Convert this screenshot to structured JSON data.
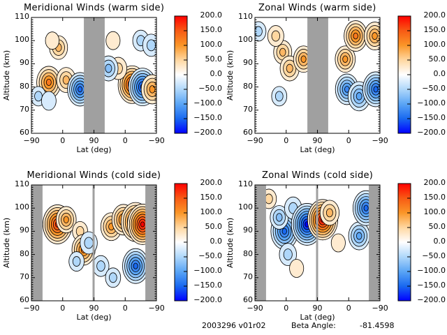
{
  "figure": {
    "footer": {
      "date_version": "2003296 v01r02",
      "beta_label": "Beta Angle:",
      "beta_value": "-81.4598"
    }
  },
  "chart_data": [
    {
      "type": "heatmap",
      "title": "Meridional Winds (warm side)",
      "xlabel": "Lat (deg)",
      "ylabel": "Altitude (km)",
      "x_tick_labels": [
        "-90",
        "0",
        "90",
        "0",
        "-90"
      ],
      "x_axis_note": "concatenated latitude track -90 to 90 to -90 (position 0-360)",
      "xlim": [
        0,
        360
      ],
      "ylim": [
        60,
        110
      ],
      "y_ticks": [
        60,
        70,
        80,
        90,
        100,
        110
      ],
      "colorbar": {
        "range": [
          -200,
          200
        ],
        "tick_labels": [
          "200.0",
          "150.0",
          "100.0",
          "50.0",
          "0.0",
          "-50.0",
          "-100.0",
          "-150.0",
          "-200.0"
        ]
      },
      "masked_ranges": [
        [
          151,
          211
        ]
      ],
      "features": [
        {
          "x": 50,
          "alt": 82,
          "value": 130
        },
        {
          "x": 78,
          "alt": 97,
          "value": 70
        },
        {
          "x": 60,
          "alt": 100,
          "value": 25
        },
        {
          "x": 100,
          "alt": 83,
          "value": 80
        },
        {
          "x": 140,
          "alt": 79,
          "value": -140
        },
        {
          "x": 20,
          "alt": 76,
          "value": -40
        },
        {
          "x": 50,
          "alt": 74,
          "value": -35
        },
        {
          "x": 290,
          "alt": 81,
          "value": 170
        },
        {
          "x": 250,
          "alt": 88,
          "value": 60
        },
        {
          "x": 235,
          "alt": 100,
          "value": 30
        },
        {
          "x": 222,
          "alt": 88,
          "value": -80
        },
        {
          "x": 320,
          "alt": 80,
          "value": -170
        },
        {
          "x": 348,
          "alt": 79,
          "value": 110
        },
        {
          "x": 315,
          "alt": 100,
          "value": -50
        },
        {
          "x": 345,
          "alt": 98,
          "value": -60
        }
      ]
    },
    {
      "type": "heatmap",
      "title": "Zonal Winds (warm side)",
      "xlabel": "Lat (deg)",
      "ylabel": "Altitude (km)",
      "x_tick_labels": [
        "-90",
        "0",
        "90",
        "0",
        "-90"
      ],
      "x_axis_note": "concatenated latitude track -90 to 90 to -90 (position 0-360)",
      "xlim": [
        0,
        360
      ],
      "ylim": [
        60,
        110
      ],
      "y_ticks": [
        60,
        70,
        80,
        90,
        100,
        110
      ],
      "colorbar": {
        "range": [
          -200,
          200
        ],
        "tick_labels": [
          "200.0",
          "150.0",
          "100.0",
          "50.0",
          "0.0",
          "-50.0",
          "-100.0",
          "-150.0",
          "-200.0"
        ]
      },
      "masked_ranges": [
        [
          151,
          211
        ]
      ],
      "features": [
        {
          "x": 80,
          "alt": 95,
          "value": 70
        },
        {
          "x": 100,
          "alt": 88,
          "value": 80
        },
        {
          "x": 60,
          "alt": 102,
          "value": 50
        },
        {
          "x": 140,
          "alt": 92,
          "value": 90
        },
        {
          "x": 70,
          "alt": 76,
          "value": -40
        },
        {
          "x": 10,
          "alt": 104,
          "value": -40
        },
        {
          "x": 260,
          "alt": 92,
          "value": 90
        },
        {
          "x": 290,
          "alt": 102,
          "value": 120
        },
        {
          "x": 265,
          "alt": 79,
          "value": -120
        },
        {
          "x": 300,
          "alt": 76,
          "value": -110
        },
        {
          "x": 345,
          "alt": 102,
          "value": 100
        },
        {
          "x": 348,
          "alt": 79,
          "value": -150
        }
      ]
    },
    {
      "type": "heatmap",
      "title": "Meridional Winds (cold side)",
      "xlabel": "Lat (deg)",
      "ylabel": "Altitude (km)",
      "x_tick_labels": [
        "-90",
        "0",
        "90",
        "0",
        "-90"
      ],
      "x_axis_note": "concatenated latitude track -90 to 90 to -90 (position 0-360)",
      "xlim": [
        0,
        360
      ],
      "ylim": [
        60,
        110
      ],
      "y_ticks": [
        60,
        70,
        80,
        90,
        100,
        110
      ],
      "colorbar": {
        "range": [
          -200,
          200
        ],
        "tick_labels": [
          "200.0",
          "150.0",
          "100.0",
          "50.0",
          "0.0",
          "-50.0",
          "-100.0",
          "-150.0",
          "-200.0"
        ]
      },
      "masked_ranges": [
        [
          0,
          32
        ],
        [
          176,
          182
        ],
        [
          328,
          360
        ]
      ],
      "features": [
        {
          "x": 75,
          "alt": 93,
          "value": 180
        },
        {
          "x": 100,
          "alt": 95,
          "value": 90
        },
        {
          "x": 140,
          "alt": 90,
          "value": 40
        },
        {
          "x": 150,
          "alt": 82,
          "value": 120
        },
        {
          "x": 130,
          "alt": 77,
          "value": -40
        },
        {
          "x": 165,
          "alt": 85,
          "value": -60
        },
        {
          "x": 230,
          "alt": 92,
          "value": 100
        },
        {
          "x": 265,
          "alt": 95,
          "value": 120
        },
        {
          "x": 300,
          "alt": 94,
          "value": 180
        },
        {
          "x": 320,
          "alt": 93,
          "value": 190
        },
        {
          "x": 300,
          "alt": 75,
          "value": -150
        },
        {
          "x": 200,
          "alt": 75,
          "value": -50
        },
        {
          "x": 235,
          "alt": 70,
          "value": -40
        }
      ]
    },
    {
      "type": "heatmap",
      "title": "Zonal Winds (cold side)",
      "xlabel": "Lat (deg)",
      "ylabel": "Altitude (km)",
      "x_tick_labels": [
        "-90",
        "0",
        "90",
        "0",
        "-90"
      ],
      "x_axis_note": "concatenated latitude track -90 to 90 to -90 (position 0-360)",
      "xlim": [
        0,
        360
      ],
      "ylim": [
        60,
        110
      ],
      "y_ticks": [
        60,
        70,
        80,
        90,
        100,
        110
      ],
      "colorbar": {
        "range": [
          -200,
          200
        ],
        "tick_labels": [
          "200.0",
          "150.0",
          "100.0",
          "50.0",
          "0.0",
          "-50.0",
          "-100.0",
          "-150.0",
          "-200.0"
        ]
      },
      "masked_ranges": [
        [
          0,
          32
        ],
        [
          176,
          182
        ],
        [
          328,
          360
        ]
      ],
      "features": [
        {
          "x": 85,
          "alt": 90,
          "value": -160
        },
        {
          "x": 70,
          "alt": 96,
          "value": -70
        },
        {
          "x": 110,
          "alt": 100,
          "value": -60
        },
        {
          "x": 95,
          "alt": 80,
          "value": -60
        },
        {
          "x": 150,
          "alt": 93,
          "value": -200
        },
        {
          "x": 195,
          "alt": 95,
          "value": 190
        },
        {
          "x": 215,
          "alt": 98,
          "value": 80
        },
        {
          "x": 240,
          "alt": 85,
          "value": 30
        },
        {
          "x": 300,
          "alt": 88,
          "value": -100
        },
        {
          "x": 320,
          "alt": 100,
          "value": -150
        },
        {
          "x": 40,
          "alt": 104,
          "value": 40
        },
        {
          "x": 120,
          "alt": 74,
          "value": 30
        }
      ]
    }
  ]
}
